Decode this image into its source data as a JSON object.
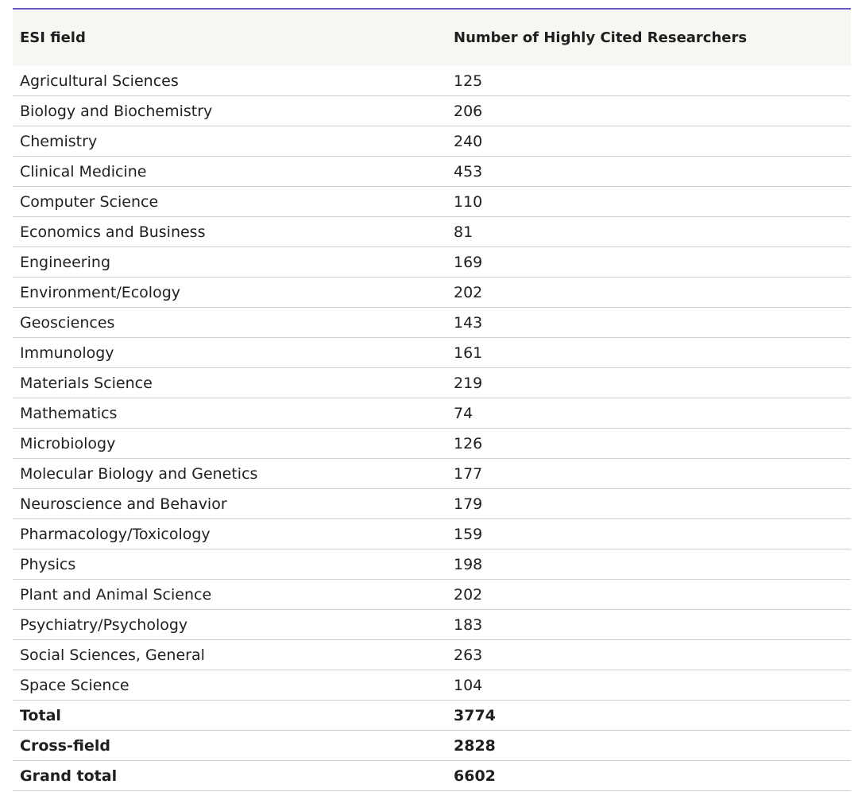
{
  "table": {
    "header": [
      "ESI field",
      "Number of Highly Cited Researchers"
    ],
    "rows": [
      [
        "Agricultural Sciences",
        125
      ],
      [
        "Biology and Biochemistry",
        206
      ],
      [
        "Chemistry",
        240
      ],
      [
        "Clinical Medicine",
        453
      ],
      [
        "Computer Science",
        110
      ],
      [
        "Economics and Business",
        81
      ],
      [
        "Engineering",
        169
      ],
      [
        "Environment/Ecology",
        202
      ],
      [
        "Geosciences",
        143
      ],
      [
        "Immunology",
        161
      ],
      [
        "Materials Science",
        219
      ],
      [
        "Mathematics",
        74
      ],
      [
        "Microbiology",
        126
      ],
      [
        "Molecular Biology and Genetics",
        177
      ],
      [
        "Neuroscience and Behavior",
        179
      ],
      [
        "Pharmacology/Toxicology",
        159
      ],
      [
        "Physics",
        198
      ],
      [
        "Plant and Animal Science",
        202
      ],
      [
        "Psychiatry/Psychology",
        183
      ],
      [
        "Social Sciences, General",
        263
      ],
      [
        "Space Science",
        104
      ]
    ],
    "totals": [
      [
        "Total",
        3774
      ],
      [
        "Cross-field",
        2828
      ],
      [
        "Grand total",
        6602
      ]
    ]
  }
}
